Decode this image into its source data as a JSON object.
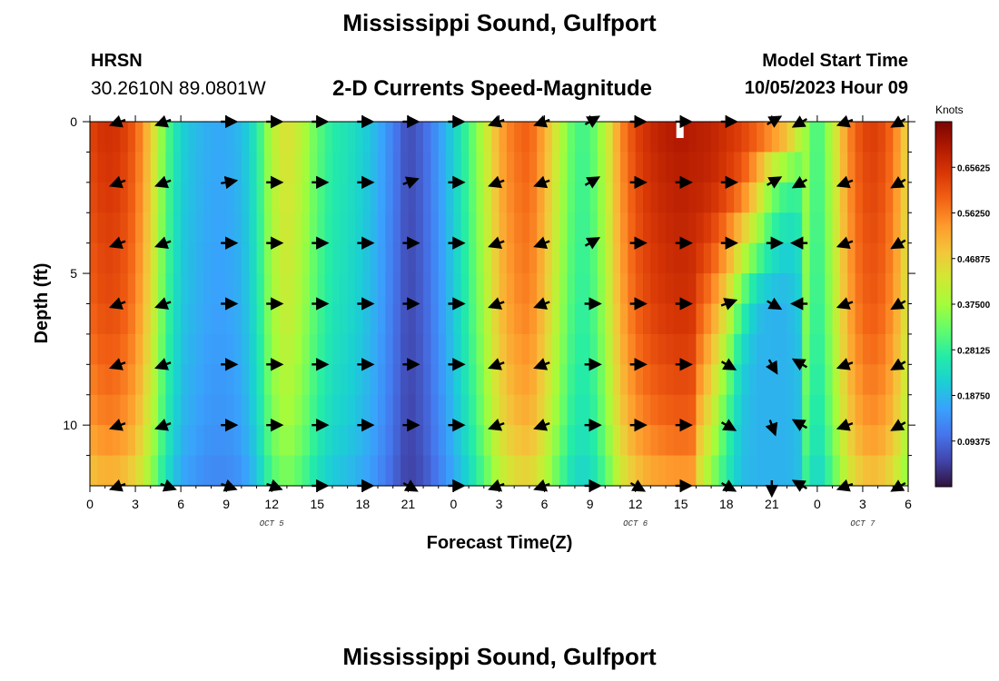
{
  "header": {
    "title": "Mississippi Sound, Gulfport",
    "station_id": "HRSN",
    "station_coords": "30.2610N  89.0801W",
    "product": "2-D Currents Speed-Magnitude",
    "start_label": "Model Start Time",
    "start_value": "10/05/2023 Hour 09"
  },
  "footer": {
    "title": "Mississippi Sound, Gulfport"
  },
  "chart_data": {
    "type": "heatmap",
    "title": "2-D Currents Speed-Magnitude",
    "xlabel": "Forecast Time(Z)",
    "ylabel": "Depth (ft)",
    "x_tick_labels": [
      "0",
      "3",
      "6",
      "9",
      "12",
      "15",
      "18",
      "21",
      "0",
      "3",
      "6",
      "9",
      "12",
      "15",
      "18",
      "21",
      "0",
      "3",
      "6"
    ],
    "x_hours": [
      0,
      3,
      6,
      9,
      12,
      15,
      18,
      21,
      24,
      27,
      30,
      33,
      36,
      39,
      42,
      45,
      48,
      51,
      54
    ],
    "xlim": [
      0,
      54
    ],
    "day_labels": [
      {
        "label": "OCT 5",
        "hour": 12
      },
      {
        "label": "OCT 6",
        "hour": 36
      },
      {
        "label": "OCT 7",
        "hour": 51
      }
    ],
    "y_tick_labels": [
      "0",
      "5",
      "10"
    ],
    "y_ticks": [
      0,
      5,
      10
    ],
    "ylim": [
      0,
      12
    ],
    "y_inverted": true,
    "colorbar": {
      "unit": "Knots",
      "ticks": [
        "0.65625",
        "0.56250",
        "0.46875",
        "0.37500",
        "0.28125",
        "0.18750",
        "0.09375"
      ],
      "tick_values": [
        0.65625,
        0.5625,
        0.46875,
        0.375,
        0.28125,
        0.1875,
        0.09375
      ],
      "range": [
        0,
        0.75
      ],
      "colors": [
        "#30123b",
        "#4145ab",
        "#4675ed",
        "#39a2fc",
        "#1bcfd4",
        "#24eca6",
        "#61fc6c",
        "#a4fc3b",
        "#d1e834",
        "#f3c63a",
        "#fe9b2d",
        "#f36315",
        "#d93806",
        "#b11901",
        "#7a0403"
      ]
    },
    "depth_levels": [
      0,
      2,
      4,
      6,
      8,
      10,
      12
    ],
    "speed_profile": {
      "hours": [
        0,
        1,
        2,
        3,
        4,
        5,
        6,
        7,
        8,
        9,
        10,
        11,
        12,
        13,
        14,
        15,
        16,
        17,
        18,
        19,
        20,
        21,
        22,
        23,
        24,
        25,
        26,
        27,
        28,
        29,
        30,
        31,
        32,
        33,
        34,
        35,
        36,
        37,
        38,
        39,
        40,
        41,
        42,
        43,
        44,
        45,
        46,
        47,
        48,
        49,
        50,
        51,
        52,
        53,
        54
      ],
      "surface": [
        0.63,
        0.66,
        0.65,
        0.6,
        0.48,
        0.32,
        0.22,
        0.19,
        0.17,
        0.17,
        0.19,
        0.26,
        0.4,
        0.45,
        0.4,
        0.32,
        0.27,
        0.25,
        0.22,
        0.18,
        0.12,
        0.06,
        0.09,
        0.15,
        0.22,
        0.3,
        0.4,
        0.52,
        0.58,
        0.6,
        0.52,
        0.4,
        0.3,
        0.3,
        0.4,
        0.55,
        0.63,
        0.67,
        0.69,
        0.7,
        0.69,
        0.68,
        0.66,
        0.64,
        0.62,
        0.6,
        0.55,
        0.4,
        0.28,
        0.4,
        0.55,
        0.63,
        0.64,
        0.58,
        0.45
      ],
      "depth_factor": [
        1.0,
        0.98,
        0.96,
        0.94,
        0.9,
        0.85,
        0.75
      ],
      "tail_profile": {
        "hours": [
          40,
          41,
          42,
          43,
          44,
          45,
          46,
          47
        ],
        "rows": [
          [
            0.69,
            0.68,
            0.66,
            0.64,
            0.62,
            0.6,
            0.55,
            0.4
          ],
          [
            0.68,
            0.67,
            0.64,
            0.6,
            0.5,
            0.36,
            0.3,
            0.3
          ],
          [
            0.66,
            0.62,
            0.55,
            0.45,
            0.35,
            0.26,
            0.22,
            0.25
          ],
          [
            0.62,
            0.55,
            0.45,
            0.3,
            0.2,
            0.18,
            0.18,
            0.22
          ],
          [
            0.58,
            0.48,
            0.36,
            0.22,
            0.18,
            0.18,
            0.18,
            0.2
          ],
          [
            0.52,
            0.42,
            0.3,
            0.2,
            0.18,
            0.18,
            0.18,
            0.2
          ],
          [
            0.45,
            0.35,
            0.26,
            0.19,
            0.18,
            0.18,
            0.18,
            0.2
          ]
        ]
      }
    },
    "vector_hours": [
      2,
      5,
      9,
      12,
      15,
      18,
      21,
      24,
      27,
      30,
      33,
      36,
      39,
      42,
      45,
      47,
      50,
      53.5
    ],
    "vector_depths": [
      0,
      2,
      4,
      6,
      8,
      10,
      12
    ],
    "vector_directions_deg": [
      [
        200,
        200,
        0,
        0,
        0,
        0,
        0,
        0,
        200,
        200,
        30,
        0,
        0,
        0,
        30,
        210,
        200,
        210
      ],
      [
        200,
        200,
        10,
        0,
        0,
        0,
        20,
        0,
        200,
        200,
        30,
        0,
        0,
        0,
        30,
        210,
        200,
        210
      ],
      [
        200,
        200,
        0,
        0,
        0,
        0,
        0,
        0,
        200,
        200,
        30,
        0,
        0,
        0,
        0,
        180,
        200,
        210
      ],
      [
        200,
        200,
        0,
        0,
        0,
        0,
        0,
        0,
        200,
        200,
        0,
        0,
        0,
        20,
        330,
        180,
        200,
        210
      ],
      [
        200,
        200,
        0,
        0,
        0,
        0,
        0,
        0,
        200,
        200,
        0,
        0,
        0,
        330,
        300,
        150,
        200,
        210
      ],
      [
        200,
        200,
        0,
        0,
        0,
        0,
        0,
        0,
        200,
        200,
        0,
        0,
        0,
        330,
        290,
        150,
        200,
        210
      ],
      [
        200,
        340,
        340,
        340,
        0,
        0,
        330,
        0,
        200,
        200,
        0,
        330,
        0,
        330,
        270,
        150,
        200,
        210
      ]
    ]
  }
}
